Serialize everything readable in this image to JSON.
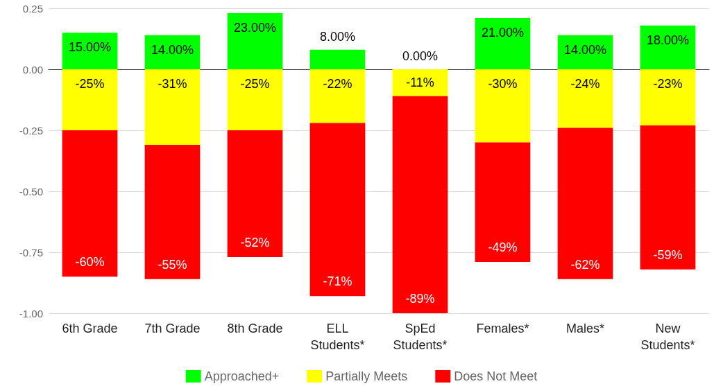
{
  "chart_data": {
    "type": "bar",
    "stacked": true,
    "categories": [
      "6th Grade",
      "7th Grade",
      "8th Grade",
      "ELL\nStudents*",
      "SpEd\nStudents*",
      "Females*",
      "Males*",
      "New\nStudents*"
    ],
    "series": [
      {
        "name": "Approached+",
        "color": "#00ff00",
        "values": [
          0.15,
          0.14,
          0.23,
          0.08,
          0.0,
          0.21,
          0.14,
          0.18
        ],
        "value_labels": [
          "15.00%",
          "14.00%",
          "23.00%",
          "8.00%",
          "0.00%",
          "21.00%",
          "14.00%",
          "18.00%"
        ]
      },
      {
        "name": "Partially Meets",
        "color": "#ffff00",
        "values": [
          -0.25,
          -0.31,
          -0.25,
          -0.22,
          -0.11,
          -0.3,
          -0.24,
          -0.23
        ],
        "value_labels": [
          "-25%",
          "-31%",
          "-25%",
          "-22%",
          "-11%",
          "-30%",
          "-24%",
          "-23%"
        ]
      },
      {
        "name": "Does Not Meet",
        "color": "#ff0000",
        "values": [
          -0.6,
          -0.55,
          -0.52,
          -0.71,
          -0.89,
          -0.49,
          -0.62,
          -0.59
        ],
        "value_labels": [
          "-60%",
          "-55%",
          "-52%",
          "-71%",
          "-89%",
          "-49%",
          "-62%",
          "-59%"
        ]
      }
    ],
    "ylim": [
      -1.0,
      0.25
    ],
    "yticks": [
      {
        "value": -1.0,
        "label": "-1.00"
      },
      {
        "value": -0.75,
        "label": "-0.75"
      },
      {
        "value": -0.5,
        "label": "-0.50"
      },
      {
        "value": -0.25,
        "label": "-0.25"
      },
      {
        "value": 0,
        "label": "0.00"
      },
      {
        "value": 0.25,
        "label": "0.25"
      }
    ],
    "grid": "y",
    "legend": "bottom"
  }
}
